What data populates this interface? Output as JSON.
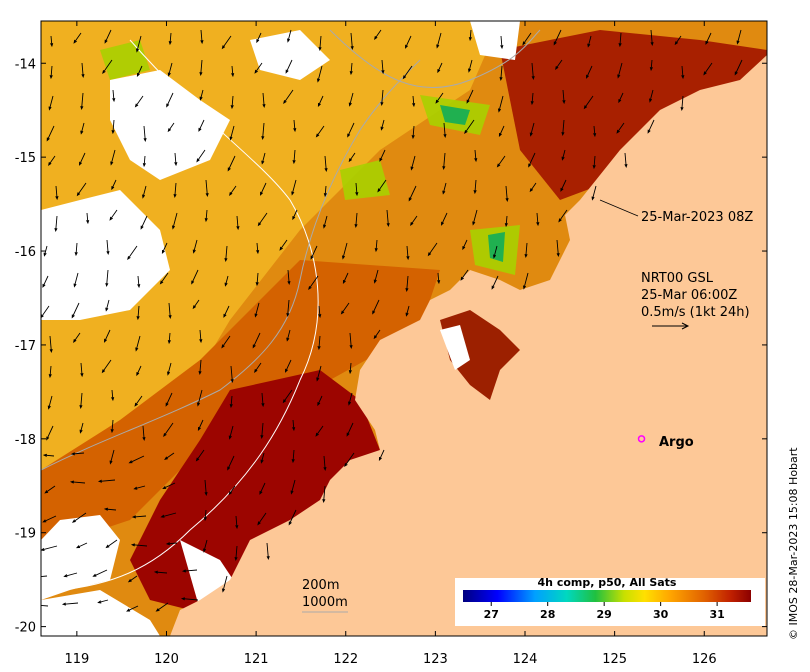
{
  "map": {
    "lon_range": [
      118.6,
      126.7
    ],
    "lat_range": [
      -20.1,
      -13.55
    ],
    "lon_ticks": [
      "119",
      "120",
      "121",
      "122",
      "123",
      "124",
      "125",
      "126"
    ],
    "lat_ticks": [
      "-14",
      "-15",
      "-16",
      "-17",
      "-18",
      "-19",
      "-20"
    ],
    "image_time": "25-Mar-2023 08Z",
    "currents": {
      "source": "NRT00 GSL",
      "time": "25-Mar 06:00Z",
      "scale": "0.5m/s (1kt 24h)"
    },
    "argo": {
      "label": "Argo",
      "lon": 125.3,
      "lat": -18.0,
      "color": "#ff00ff"
    },
    "isobaths": [
      "200m",
      "1000m"
    ],
    "colorbar": {
      "title": "4h comp, p50, All Sats",
      "ticks": [
        "27",
        "28",
        "29",
        "30",
        "31"
      ],
      "min": 26.5,
      "max": 31.6
    },
    "credit": "© IMOS 28-Mar-2023 15:08 Hobart",
    "colors": {
      "land": "#fdc897",
      "hot": "#9c0500",
      "warm": "#d86c00",
      "cloud": "#ffffff"
    }
  }
}
